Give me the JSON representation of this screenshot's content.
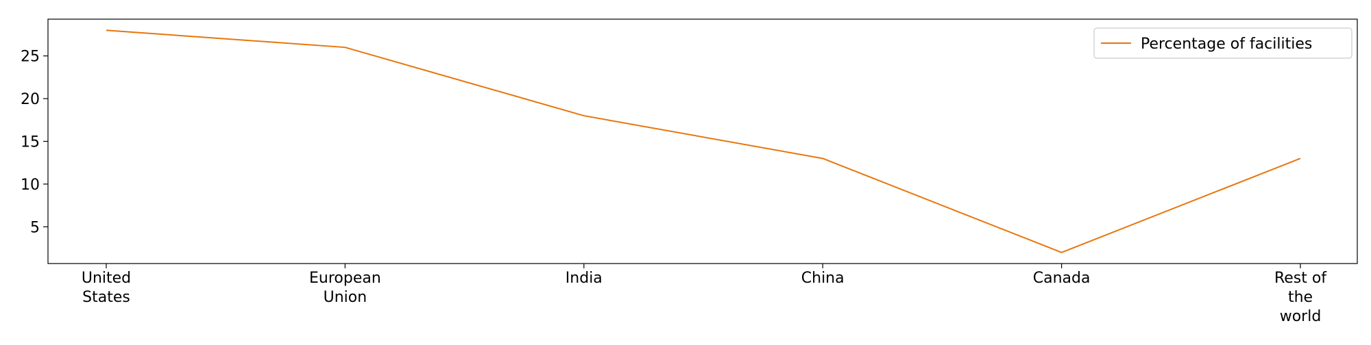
{
  "chart_data": {
    "type": "line",
    "categories": [
      [
        "United",
        "States"
      ],
      [
        "European",
        "Union"
      ],
      [
        "India"
      ],
      [
        "China"
      ],
      [
        "Canada"
      ],
      [
        "Rest of",
        "the",
        "world"
      ]
    ],
    "series": [
      {
        "name": "Percentage of facilities",
        "values": [
          28,
          26,
          18,
          13,
          2,
          13
        ],
        "color": "#e8750a"
      }
    ],
    "yticks": [
      5,
      10,
      15,
      20,
      25
    ],
    "ylim": [
      0.7,
      29.3
    ],
    "title": "",
    "xlabel": "",
    "ylabel": "",
    "grid": false,
    "legend_position": "top-right"
  }
}
